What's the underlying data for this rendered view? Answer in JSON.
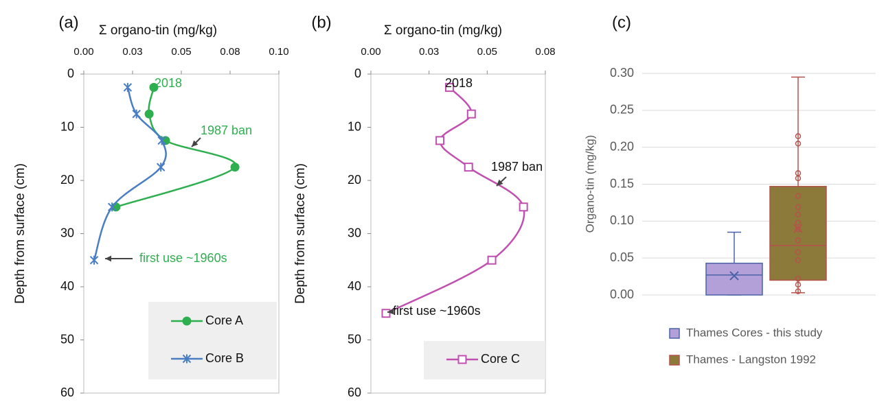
{
  "chart_data": [
    {
      "type": "line",
      "panel_label": "(a)",
      "title": "Σ organo-tin (mg/kg)",
      "y_label": "Depth from surface (cm)",
      "xlim": [
        0,
        0.1
      ],
      "xticks": [
        {
          "value": 0,
          "label": "0.00"
        },
        {
          "value": 0.025,
          "label": "0.03"
        },
        {
          "value": 0.05,
          "label": "0.05"
        },
        {
          "value": 0.075,
          "label": "0.08"
        },
        {
          "value": 0.1,
          "label": "0.10"
        }
      ],
      "ylim": [
        0,
        60
      ],
      "yticks": [
        0,
        10,
        20,
        30,
        40,
        50,
        60
      ],
      "y_inverted": true,
      "x_axis_position": "top",
      "series": [
        {
          "name": "Core A",
          "color": "#2eaf4f",
          "marker": "circle",
          "x": [
            0.0359,
            0.0335,
            0.0419,
            0.0775,
            0.0165
          ],
          "y": [
            2.5,
            7.5,
            12.5,
            17.5,
            25
          ]
        },
        {
          "name": "Core B",
          "color": "#4a7ec2",
          "marker": "star",
          "x": [
            0.0225,
            0.027,
            0.04,
            0.0395,
            0.0145,
            0.0053
          ],
          "y": [
            2.5,
            7.5,
            12.5,
            17.5,
            25,
            35
          ]
        }
      ],
      "annotations": [
        {
          "text": "2018",
          "color": "#2eaf4f"
        },
        {
          "text": "1987 ban",
          "color": "#2eaf4f"
        },
        {
          "text": "first use ~1960s",
          "color": "#2eaf4f"
        }
      ]
    },
    {
      "type": "line",
      "panel_label": "(b)",
      "title": "Σ organo-tin (mg/kg)",
      "y_label": "Depth from surface (cm)",
      "xlim": [
        0,
        0.075
      ],
      "xticks": [
        {
          "value": 0,
          "label": "0.00"
        },
        {
          "value": 0.025,
          "label": "0.03"
        },
        {
          "value": 0.05,
          "label": "0.05"
        },
        {
          "value": 0.075,
          "label": "0.08"
        }
      ],
      "ylim": [
        0,
        60
      ],
      "yticks": [
        0,
        10,
        20,
        30,
        40,
        50,
        60
      ],
      "y_inverted": true,
      "x_axis_position": "top",
      "series": [
        {
          "name": "Core C",
          "color": "#c04fb0",
          "marker": "square",
          "x": [
            0.0338,
            0.0432,
            0.0297,
            0.042,
            0.0656,
            0.052,
            0.0065
          ],
          "y": [
            2.5,
            7.5,
            12.5,
            17.5,
            25,
            35,
            45
          ]
        }
      ],
      "annotations": [
        {
          "text": "2018",
          "color": "#111111"
        },
        {
          "text": "1987 ban",
          "color": "#111111"
        },
        {
          "text": "first use ~1960s",
          "color": "#111111"
        }
      ]
    },
    {
      "type": "box",
      "panel_label": "(c)",
      "y_label": "Organo-tin  (mg/kg)",
      "ylim": [
        0,
        0.3
      ],
      "yticks": [
        {
          "value": 0,
          "label": "0.00"
        },
        {
          "value": 0.05,
          "label": "0.05"
        },
        {
          "value": 0.1,
          "label": "0.10"
        },
        {
          "value": 0.15,
          "label": "0.15"
        },
        {
          "value": 0.2,
          "label": "0.20"
        },
        {
          "value": 0.25,
          "label": "0.25"
        },
        {
          "value": 0.3,
          "label": "0.30"
        }
      ],
      "grid": true,
      "series": [
        {
          "name": "Thames Cores - this study",
          "color": "#b4a0d8",
          "edge": "#4a63a8",
          "min": 0,
          "q1": 0,
          "median": 0.027,
          "q3": 0.043,
          "max": 0.085,
          "mean": 0.026,
          "points": []
        },
        {
          "name": "Thames - Langston 1992",
          "color": "#8c7a3a",
          "edge": "#b5524c",
          "min": 0.003,
          "q1": 0.02,
          "median": 0.067,
          "q3": 0.147,
          "max": 0.295,
          "mean": 0.09,
          "points": [
            0.215,
            0.205,
            0.165,
            0.158,
            0.134,
            0.119,
            0.109,
            0.098,
            0.089,
            0.074,
            0.058,
            0.047,
            0.022,
            0.014,
            0.005
          ]
        }
      ]
    }
  ]
}
